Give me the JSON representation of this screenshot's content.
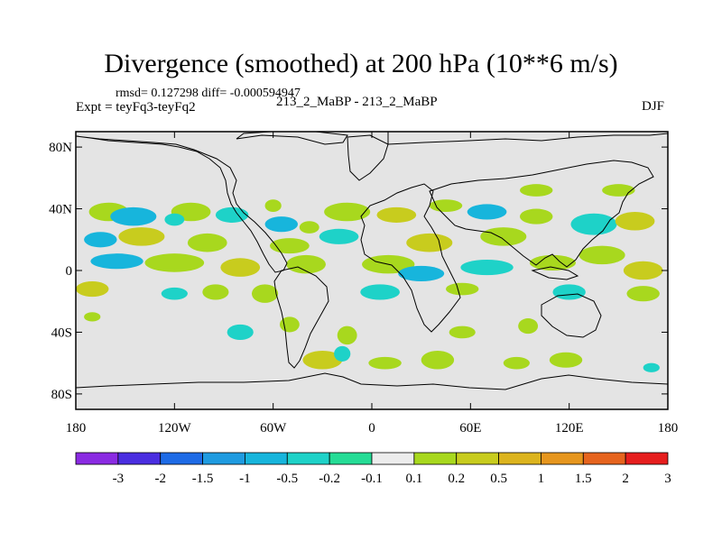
{
  "figure": {
    "title": "Divergence (smoothed) at 200 hPa (10**6 m/s)",
    "stats": "rmsd= 0.127298 diff= -0.000594947",
    "left_label": "Expt = teyFq3-teyFq2",
    "center_label": "213_2_MaBP - 213_2_MaBP",
    "right_label": "DJF"
  },
  "chart_data": {
    "type": "heatmap",
    "title": "Divergence (smoothed) at 200 hPa (10**6 m/s)",
    "projection": "cylindrical equidistant",
    "xlim": [
      -180,
      180
    ],
    "ylim": [
      -90,
      90
    ],
    "x_ticks": [
      {
        "value": -180,
        "label": "180"
      },
      {
        "value": -120,
        "label": "120W"
      },
      {
        "value": -60,
        "label": "60W"
      },
      {
        "value": 0,
        "label": "0"
      },
      {
        "value": 60,
        "label": "60E"
      },
      {
        "value": 120,
        "label": "120E"
      },
      {
        "value": 180,
        "label": "180"
      }
    ],
    "y_ticks": [
      {
        "value": 80,
        "label": "80N"
      },
      {
        "value": 40,
        "label": "40N"
      },
      {
        "value": 0,
        "label": "0"
      },
      {
        "value": -40,
        "label": "40S"
      },
      {
        "value": -80,
        "label": "80S"
      }
    ],
    "colorbar": {
      "levels": [
        "-3",
        "-2",
        "-1.5",
        "-1",
        "-0.5",
        "-0.2",
        "-0.1",
        "0.1",
        "0.2",
        "0.5",
        "1",
        "1.5",
        "2",
        "3"
      ],
      "colors": [
        "#8a2be2",
        "#4a2ee0",
        "#1e6be6",
        "#1f9be0",
        "#17b5dc",
        "#1ed2c8",
        "#25dc96",
        "#ececec",
        "#a8d81e",
        "#c8cc1e",
        "#dcb41e",
        "#e6961e",
        "#e6641e",
        "#e61e1e"
      ],
      "missing_color": "#e4e4e4"
    },
    "anomaly_blobs": [
      {
        "lon": -160,
        "lat": 38,
        "rx": 12,
        "ry": 6,
        "value": 0.2
      },
      {
        "lon": -145,
        "lat": 35,
        "rx": 14,
        "ry": 6,
        "value": -0.5
      },
      {
        "lon": -110,
        "lat": 38,
        "rx": 12,
        "ry": 6,
        "value": 0.2
      },
      {
        "lon": -120,
        "lat": 33,
        "rx": 6,
        "ry": 4,
        "value": -0.2
      },
      {
        "lon": -85,
        "lat": 36,
        "rx": 10,
        "ry": 5,
        "value": -0.2
      },
      {
        "lon": -60,
        "lat": 42,
        "rx": 5,
        "ry": 4,
        "value": 0.2
      },
      {
        "lon": -55,
        "lat": 30,
        "rx": 10,
        "ry": 5,
        "value": -0.5
      },
      {
        "lon": -38,
        "lat": 28,
        "rx": 6,
        "ry": 4,
        "value": 0.2
      },
      {
        "lon": -15,
        "lat": 38,
        "rx": 14,
        "ry": 6,
        "value": 0.2
      },
      {
        "lon": 15,
        "lat": 36,
        "rx": 12,
        "ry": 5,
        "value": 0.5
      },
      {
        "lon": 45,
        "lat": 42,
        "rx": 10,
        "ry": 4,
        "value": 0.2
      },
      {
        "lon": 70,
        "lat": 38,
        "rx": 12,
        "ry": 5,
        "value": -0.5
      },
      {
        "lon": 100,
        "lat": 35,
        "rx": 10,
        "ry": 5,
        "value": 0.2
      },
      {
        "lon": 135,
        "lat": 30,
        "rx": 14,
        "ry": 7,
        "value": -0.2
      },
      {
        "lon": 160,
        "lat": 32,
        "rx": 12,
        "ry": 6,
        "value": 0.5
      },
      {
        "lon": 100,
        "lat": 52,
        "rx": 10,
        "ry": 4,
        "value": 0.2
      },
      {
        "lon": 150,
        "lat": 52,
        "rx": 10,
        "ry": 4,
        "value": 0.2
      },
      {
        "lon": -165,
        "lat": 20,
        "rx": 10,
        "ry": 5,
        "value": -0.5
      },
      {
        "lon": -140,
        "lat": 22,
        "rx": 14,
        "ry": 6,
        "value": 0.5
      },
      {
        "lon": -100,
        "lat": 18,
        "rx": 12,
        "ry": 6,
        "value": 0.2
      },
      {
        "lon": -50,
        "lat": 16,
        "rx": 12,
        "ry": 5,
        "value": 0.2
      },
      {
        "lon": -20,
        "lat": 22,
        "rx": 12,
        "ry": 5,
        "value": -0.2
      },
      {
        "lon": 35,
        "lat": 18,
        "rx": 14,
        "ry": 6,
        "value": 0.5
      },
      {
        "lon": 80,
        "lat": 22,
        "rx": 14,
        "ry": 6,
        "value": 0.2
      },
      {
        "lon": 140,
        "lat": 10,
        "rx": 14,
        "ry": 6,
        "value": 0.2
      },
      {
        "lon": -155,
        "lat": 6,
        "rx": 16,
        "ry": 5,
        "value": -0.5
      },
      {
        "lon": -120,
        "lat": 5,
        "rx": 18,
        "ry": 6,
        "value": 0.2
      },
      {
        "lon": -80,
        "lat": 2,
        "rx": 12,
        "ry": 6,
        "value": 0.5
      },
      {
        "lon": -40,
        "lat": 4,
        "rx": 12,
        "ry": 6,
        "value": 0.2
      },
      {
        "lon": 10,
        "lat": 4,
        "rx": 16,
        "ry": 6,
        "value": 0.2
      },
      {
        "lon": 30,
        "lat": -2,
        "rx": 14,
        "ry": 5,
        "value": -0.5
      },
      {
        "lon": 70,
        "lat": 2,
        "rx": 16,
        "ry": 5,
        "value": -0.2
      },
      {
        "lon": 110,
        "lat": 5,
        "rx": 14,
        "ry": 5,
        "value": 0.2
      },
      {
        "lon": 165,
        "lat": 0,
        "rx": 12,
        "ry": 6,
        "value": 0.5
      },
      {
        "lon": -170,
        "lat": -12,
        "rx": 10,
        "ry": 5,
        "value": 0.5
      },
      {
        "lon": -120,
        "lat": -15,
        "rx": 8,
        "ry": 4,
        "value": -0.2
      },
      {
        "lon": -95,
        "lat": -14,
        "rx": 8,
        "ry": 5,
        "value": 0.2
      },
      {
        "lon": -65,
        "lat": -15,
        "rx": 8,
        "ry": 6,
        "value": 0.2
      },
      {
        "lon": 5,
        "lat": -14,
        "rx": 12,
        "ry": 5,
        "value": -0.2
      },
      {
        "lon": 55,
        "lat": -12,
        "rx": 10,
        "ry": 4,
        "value": 0.2
      },
      {
        "lon": 120,
        "lat": -14,
        "rx": 10,
        "ry": 5,
        "value": -0.2
      },
      {
        "lon": 165,
        "lat": -15,
        "rx": 10,
        "ry": 5,
        "value": 0.2
      },
      {
        "lon": -80,
        "lat": -40,
        "rx": 8,
        "ry": 5,
        "value": -0.2
      },
      {
        "lon": -50,
        "lat": -35,
        "rx": 6,
        "ry": 5,
        "value": 0.2
      },
      {
        "lon": -15,
        "lat": -42,
        "rx": 6,
        "ry": 6,
        "value": 0.2
      },
      {
        "lon": 55,
        "lat": -40,
        "rx": 8,
        "ry": 4,
        "value": 0.2
      },
      {
        "lon": 95,
        "lat": -36,
        "rx": 6,
        "ry": 5,
        "value": 0.2
      },
      {
        "lon": -30,
        "lat": -58,
        "rx": 12,
        "ry": 6,
        "value": 0.5
      },
      {
        "lon": -18,
        "lat": -54,
        "rx": 5,
        "ry": 5,
        "value": -0.2
      },
      {
        "lon": 8,
        "lat": -60,
        "rx": 10,
        "ry": 4,
        "value": 0.2
      },
      {
        "lon": 40,
        "lat": -58,
        "rx": 10,
        "ry": 6,
        "value": 0.2
      },
      {
        "lon": 88,
        "lat": -60,
        "rx": 8,
        "ry": 4,
        "value": 0.2
      },
      {
        "lon": 118,
        "lat": -58,
        "rx": 10,
        "ry": 5,
        "value": 0.2
      },
      {
        "lon": 170,
        "lat": -63,
        "rx": 5,
        "ry": 3,
        "value": -0.2
      },
      {
        "lon": -170,
        "lat": -30,
        "rx": 5,
        "ry": 3,
        "value": 0.2
      }
    ]
  }
}
